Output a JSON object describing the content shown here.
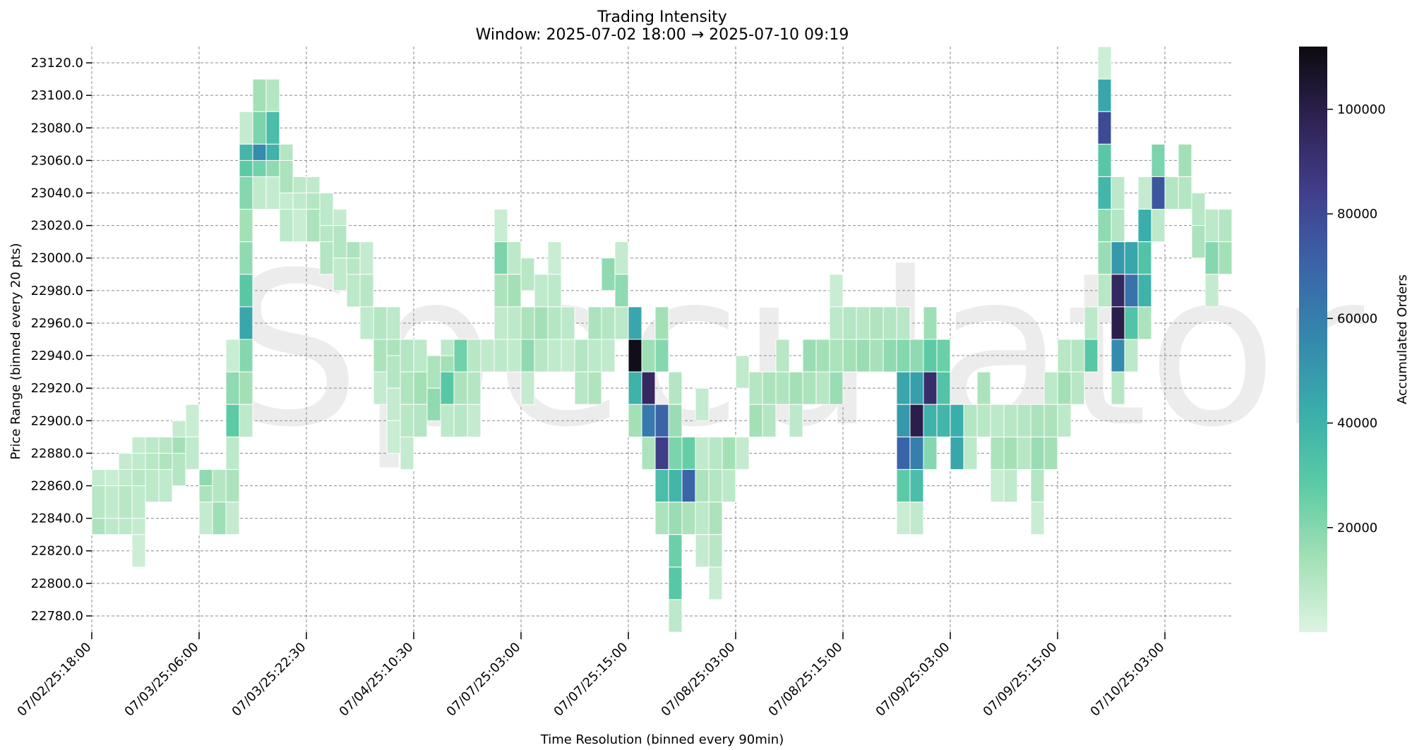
{
  "chart_data": {
    "type": "heatmap",
    "title": "Trading Intensity",
    "subtitle": "Window: 2025-07-02 18:00 → 2025-07-10 09:19",
    "xlabel": "Time Resolution (binned every 90min)",
    "ylabel": "Price Range (binned every 20 pts)",
    "watermark": "Speculator",
    "x_tick_labels": [
      "07/02/25:18:00",
      "07/03/25:06:00",
      "07/03/25:22:30",
      "07/04/25:10:30",
      "07/07/25:03:00",
      "07/07/25:15:00",
      "07/08/25:03:00",
      "07/08/25:15:00",
      "07/09/25:03:00",
      "07/09/25:15:00",
      "07/10/25:03:00"
    ],
    "x_tick_bins": [
      0,
      8,
      16,
      24,
      32,
      40,
      48,
      56,
      64,
      72,
      80
    ],
    "y_tick_labels": [
      "22780.0",
      "22800.0",
      "22820.0",
      "22840.0",
      "22860.0",
      "22880.0",
      "22900.0",
      "22920.0",
      "22940.0",
      "22960.0",
      "22980.0",
      "23000.0",
      "23020.0",
      "23040.0",
      "23060.0",
      "23080.0",
      "23100.0",
      "23120.0"
    ],
    "y_tick_values": [
      22780,
      22800,
      22820,
      22840,
      22860,
      22880,
      22900,
      22920,
      22940,
      22960,
      22980,
      23000,
      23020,
      23040,
      23060,
      23080,
      23100,
      23120
    ],
    "price_range": [
      22770,
      23130
    ],
    "num_time_bins": 85,
    "colorbar": {
      "label": "Accumulated Orders",
      "range": [
        0,
        112000
      ],
      "ticks": [
        20000,
        40000,
        60000,
        80000,
        100000
      ],
      "tick_labels": [
        "20000",
        "40000",
        "60000",
        "80000",
        "100000"
      ],
      "colors": [
        "#dcf4e2",
        "#a4e0b6",
        "#5ccba5",
        "#3aaeaa",
        "#3488ad",
        "#3b64a8",
        "#413f8c",
        "#2f2254",
        "#0c0a0f"
      ]
    },
    "grid": true,
    "cells": [
      [
        0,
        22860,
        6000
      ],
      [
        0,
        22840,
        12000
      ],
      [
        0,
        22850,
        9000
      ],
      [
        1,
        22860,
        5000
      ],
      [
        1,
        22840,
        8000
      ],
      [
        1,
        22850,
        7000
      ],
      [
        2,
        22870,
        6000
      ],
      [
        2,
        22860,
        7000
      ],
      [
        2,
        22840,
        8000
      ],
      [
        2,
        22850,
        9000
      ],
      [
        3,
        22880,
        6000
      ],
      [
        3,
        22870,
        7000
      ],
      [
        3,
        22860,
        9000
      ],
      [
        3,
        22840,
        6000
      ],
      [
        3,
        22850,
        7000
      ],
      [
        3,
        22820,
        4000
      ],
      [
        4,
        22880,
        8000
      ],
      [
        4,
        22870,
        9000
      ],
      [
        4,
        22860,
        8000
      ],
      [
        5,
        22880,
        9000
      ],
      [
        5,
        22870,
        11000
      ],
      [
        5,
        22860,
        7000
      ],
      [
        6,
        22890,
        6000
      ],
      [
        6,
        22880,
        14000
      ],
      [
        6,
        22870,
        10000
      ],
      [
        7,
        22900,
        5000
      ],
      [
        7,
        22880,
        7000
      ],
      [
        8,
        22860,
        18000
      ],
      [
        8,
        22850,
        12000
      ],
      [
        8,
        22840,
        6000
      ],
      [
        9,
        22860,
        10000
      ],
      [
        9,
        22840,
        15000
      ],
      [
        10,
        22940,
        5000
      ],
      [
        10,
        22920,
        18000
      ],
      [
        10,
        22900,
        28000
      ],
      [
        10,
        22880,
        8000
      ],
      [
        10,
        22860,
        12000
      ],
      [
        10,
        22840,
        6000
      ],
      [
        11,
        23080,
        6000
      ],
      [
        11,
        23060,
        38000
      ],
      [
        11,
        23050,
        28000
      ],
      [
        11,
        23040,
        20000
      ],
      [
        11,
        23020,
        14000
      ],
      [
        11,
        23000,
        18000
      ],
      [
        11,
        22980,
        30000
      ],
      [
        11,
        22960,
        45000
      ],
      [
        11,
        22940,
        20000
      ],
      [
        11,
        22920,
        14000
      ],
      [
        11,
        22900,
        8000
      ],
      [
        12,
        23100,
        14000
      ],
      [
        12,
        23080,
        22000
      ],
      [
        12,
        23060,
        55000
      ],
      [
        12,
        23050,
        24000
      ],
      [
        12,
        23040,
        7000
      ],
      [
        13,
        23100,
        10000
      ],
      [
        13,
        23080,
        35000
      ],
      [
        13,
        23060,
        40000
      ],
      [
        13,
        23050,
        18000
      ],
      [
        13,
        23040,
        6000
      ],
      [
        14,
        23060,
        10000
      ],
      [
        14,
        23050,
        12000
      ],
      [
        14,
        23030,
        6000
      ],
      [
        14,
        23020,
        8000
      ],
      [
        15,
        23040,
        8000
      ],
      [
        15,
        23030,
        7000
      ],
      [
        15,
        23020,
        5000
      ],
      [
        16,
        23040,
        7000
      ],
      [
        16,
        23030,
        10000
      ],
      [
        16,
        23020,
        12000
      ],
      [
        17,
        23030,
        8000
      ],
      [
        17,
        23010,
        9000
      ],
      [
        17,
        23000,
        10000
      ],
      [
        18,
        23020,
        6000
      ],
      [
        18,
        23010,
        10000
      ],
      [
        18,
        22990,
        7000
      ],
      [
        19,
        23000,
        12000
      ],
      [
        19,
        22990,
        9000
      ],
      [
        19,
        22980,
        8000
      ],
      [
        20,
        23000,
        6000
      ],
      [
        20,
        22980,
        9000
      ],
      [
        20,
        22960,
        7000
      ],
      [
        21,
        22960,
        10000
      ],
      [
        21,
        22940,
        12000
      ],
      [
        21,
        22920,
        6000
      ],
      [
        22,
        22960,
        8000
      ],
      [
        22,
        22940,
        12000
      ],
      [
        22,
        22930,
        10000
      ],
      [
        22,
        22910,
        6000
      ],
      [
        22,
        22890,
        5000
      ],
      [
        23,
        22940,
        10000
      ],
      [
        23,
        22920,
        11000
      ],
      [
        23,
        22900,
        9000
      ],
      [
        23,
        22880,
        6000
      ],
      [
        24,
        22940,
        8000
      ],
      [
        24,
        22920,
        14000
      ],
      [
        24,
        22900,
        10000
      ],
      [
        25,
        22930,
        12000
      ],
      [
        25,
        22910,
        18000
      ],
      [
        26,
        22940,
        8000
      ],
      [
        26,
        22930,
        14000
      ],
      [
        26,
        22920,
        30000
      ],
      [
        26,
        22900,
        8000
      ],
      [
        27,
        22940,
        24000
      ],
      [
        27,
        22920,
        12000
      ],
      [
        27,
        22900,
        9000
      ],
      [
        28,
        22940,
        9000
      ],
      [
        28,
        22920,
        10000
      ],
      [
        28,
        22900,
        6000
      ],
      [
        29,
        22940,
        7000
      ],
      [
        30,
        23020,
        5000
      ],
      [
        30,
        23000,
        22000
      ],
      [
        30,
        22980,
        12000
      ],
      [
        30,
        22960,
        7000
      ],
      [
        30,
        22940,
        8000
      ],
      [
        31,
        23000,
        8000
      ],
      [
        31,
        22980,
        14000
      ],
      [
        31,
        22960,
        8000
      ],
      [
        31,
        22940,
        7000
      ],
      [
        32,
        22990,
        9000
      ],
      [
        32,
        22960,
        12000
      ],
      [
        32,
        22940,
        18000
      ],
      [
        32,
        22920,
        6000
      ],
      [
        33,
        22980,
        7000
      ],
      [
        33,
        22960,
        14000
      ],
      [
        33,
        22940,
        9000
      ],
      [
        34,
        23000,
        5000
      ],
      [
        34,
        22980,
        8000
      ],
      [
        34,
        22960,
        10000
      ],
      [
        34,
        22940,
        7000
      ],
      [
        35,
        22960,
        8000
      ],
      [
        35,
        22940,
        6000
      ],
      [
        36,
        22940,
        10000
      ],
      [
        36,
        22920,
        9000
      ],
      [
        37,
        22960,
        12000
      ],
      [
        37,
        22940,
        8000
      ],
      [
        37,
        22920,
        11000
      ],
      [
        38,
        22990,
        18000
      ],
      [
        38,
        22960,
        10000
      ],
      [
        38,
        22940,
        7000
      ],
      [
        39,
        23000,
        6000
      ],
      [
        39,
        22980,
        18000
      ],
      [
        39,
        22960,
        8000
      ],
      [
        40,
        22960,
        45000
      ],
      [
        40,
        22940,
        110000
      ],
      [
        40,
        22920,
        40000
      ],
      [
        40,
        22900,
        14000
      ],
      [
        41,
        22940,
        15000
      ],
      [
        41,
        22920,
        95000
      ],
      [
        41,
        22900,
        62000
      ],
      [
        41,
        22880,
        12000
      ],
      [
        42,
        22960,
        14000
      ],
      [
        42,
        22940,
        20000
      ],
      [
        42,
        22900,
        70000
      ],
      [
        42,
        22880,
        85000
      ],
      [
        42,
        22860,
        35000
      ],
      [
        42,
        22840,
        12000
      ],
      [
        43,
        22920,
        10000
      ],
      [
        43,
        22900,
        16000
      ],
      [
        43,
        22880,
        22000
      ],
      [
        43,
        22860,
        38000
      ],
      [
        43,
        22840,
        16000
      ],
      [
        43,
        22820,
        25000
      ],
      [
        43,
        22800,
        30000
      ],
      [
        43,
        22780,
        8000
      ],
      [
        44,
        22880,
        26000
      ],
      [
        44,
        22860,
        70000
      ],
      [
        44,
        22840,
        12000
      ],
      [
        45,
        22910,
        6000
      ],
      [
        45,
        22880,
        7000
      ],
      [
        45,
        22860,
        12000
      ],
      [
        45,
        22840,
        8000
      ],
      [
        45,
        22820,
        6000
      ],
      [
        46,
        22880,
        9000
      ],
      [
        46,
        22860,
        10000
      ],
      [
        46,
        22840,
        12000
      ],
      [
        46,
        22820,
        9000
      ],
      [
        46,
        22800,
        5000
      ],
      [
        47,
        22880,
        14000
      ],
      [
        47,
        22860,
        8000
      ],
      [
        48,
        22930,
        7000
      ],
      [
        48,
        22880,
        6000
      ],
      [
        49,
        22920,
        10000
      ],
      [
        49,
        22900,
        14000
      ],
      [
        50,
        22920,
        12000
      ],
      [
        50,
        22900,
        10000
      ],
      [
        51,
        22940,
        9000
      ],
      [
        51,
        22920,
        11000
      ],
      [
        52,
        22920,
        14000
      ],
      [
        52,
        22900,
        8000
      ],
      [
        53,
        22940,
        16000
      ],
      [
        53,
        22920,
        12000
      ],
      [
        54,
        22940,
        14000
      ],
      [
        54,
        22920,
        9000
      ],
      [
        55,
        22980,
        5000
      ],
      [
        55,
        22960,
        8000
      ],
      [
        55,
        22940,
        12000
      ],
      [
        55,
        22920,
        16000
      ],
      [
        56,
        22960,
        10000
      ],
      [
        56,
        22940,
        14000
      ],
      [
        57,
        22960,
        9000
      ],
      [
        57,
        22940,
        16000
      ],
      [
        58,
        22960,
        11000
      ],
      [
        58,
        22940,
        13000
      ],
      [
        59,
        22960,
        10000
      ],
      [
        59,
        22940,
        18000
      ],
      [
        60,
        22960,
        9000
      ],
      [
        60,
        22940,
        20000
      ],
      [
        60,
        22920,
        45000
      ],
      [
        60,
        22900,
        50000
      ],
      [
        60,
        22880,
        70000
      ],
      [
        60,
        22860,
        28000
      ],
      [
        60,
        22840,
        5000
      ],
      [
        61,
        22940,
        18000
      ],
      [
        61,
        22920,
        48000
      ],
      [
        61,
        22900,
        100000
      ],
      [
        61,
        22880,
        60000
      ],
      [
        61,
        22860,
        35000
      ],
      [
        61,
        22840,
        7000
      ],
      [
        62,
        22960,
        15000
      ],
      [
        62,
        22940,
        28000
      ],
      [
        62,
        22920,
        92000
      ],
      [
        62,
        22900,
        40000
      ],
      [
        62,
        22880,
        20000
      ],
      [
        63,
        22940,
        25000
      ],
      [
        63,
        22920,
        32000
      ],
      [
        63,
        22900,
        38000
      ],
      [
        64,
        22900,
        42000
      ],
      [
        64,
        22880,
        45000
      ],
      [
        65,
        22900,
        10000
      ],
      [
        65,
        22880,
        8000
      ],
      [
        66,
        22920,
        12000
      ],
      [
        66,
        22900,
        9000
      ],
      [
        67,
        22900,
        8000
      ],
      [
        67,
        22880,
        12000
      ],
      [
        67,
        22860,
        5000
      ],
      [
        68,
        22900,
        9000
      ],
      [
        68,
        22880,
        14000
      ],
      [
        68,
        22860,
        7000
      ],
      [
        69,
        22900,
        10000
      ],
      [
        69,
        22880,
        9000
      ],
      [
        70,
        22900,
        12000
      ],
      [
        70,
        22880,
        16000
      ],
      [
        70,
        22860,
        10000
      ],
      [
        70,
        22840,
        5000
      ],
      [
        71,
        22920,
        8000
      ],
      [
        71,
        22900,
        12000
      ],
      [
        71,
        22880,
        14000
      ],
      [
        72,
        22940,
        9000
      ],
      [
        72,
        22920,
        14000
      ],
      [
        72,
        22900,
        8000
      ],
      [
        73,
        22940,
        10000
      ],
      [
        73,
        22920,
        9000
      ],
      [
        74,
        22940,
        30000
      ],
      [
        74,
        22960,
        8000
      ],
      [
        75,
        23120,
        4000
      ],
      [
        75,
        23100,
        45000
      ],
      [
        75,
        23080,
        80000
      ],
      [
        75,
        23060,
        30000
      ],
      [
        75,
        23040,
        38000
      ],
      [
        75,
        23020,
        18000
      ],
      [
        75,
        23000,
        16000
      ],
      [
        75,
        22980,
        9000
      ],
      [
        76,
        23040,
        8000
      ],
      [
        76,
        23020,
        10000
      ],
      [
        76,
        23000,
        50000
      ],
      [
        76,
        22980,
        95000
      ],
      [
        76,
        22960,
        100000
      ],
      [
        76,
        22940,
        55000
      ],
      [
        76,
        22920,
        9000
      ],
      [
        77,
        23000,
        45000
      ],
      [
        77,
        22980,
        65000
      ],
      [
        77,
        22960,
        32000
      ],
      [
        77,
        22940,
        8000
      ],
      [
        78,
        23040,
        6000
      ],
      [
        78,
        23020,
        42000
      ],
      [
        78,
        23000,
        32000
      ],
      [
        78,
        22980,
        40000
      ],
      [
        78,
        22960,
        12000
      ],
      [
        79,
        23060,
        22000
      ],
      [
        79,
        23040,
        75000
      ],
      [
        79,
        23020,
        8000
      ],
      [
        80,
        23040,
        10000
      ],
      [
        81,
        23060,
        14000
      ],
      [
        81,
        23040,
        10000
      ],
      [
        82,
        23030,
        9000
      ],
      [
        82,
        23010,
        12000
      ],
      [
        83,
        23020,
        8000
      ],
      [
        83,
        23000,
        20000
      ],
      [
        83,
        22980,
        6000
      ],
      [
        84,
        23020,
        10000
      ],
      [
        84,
        23000,
        14000
      ]
    ]
  }
}
